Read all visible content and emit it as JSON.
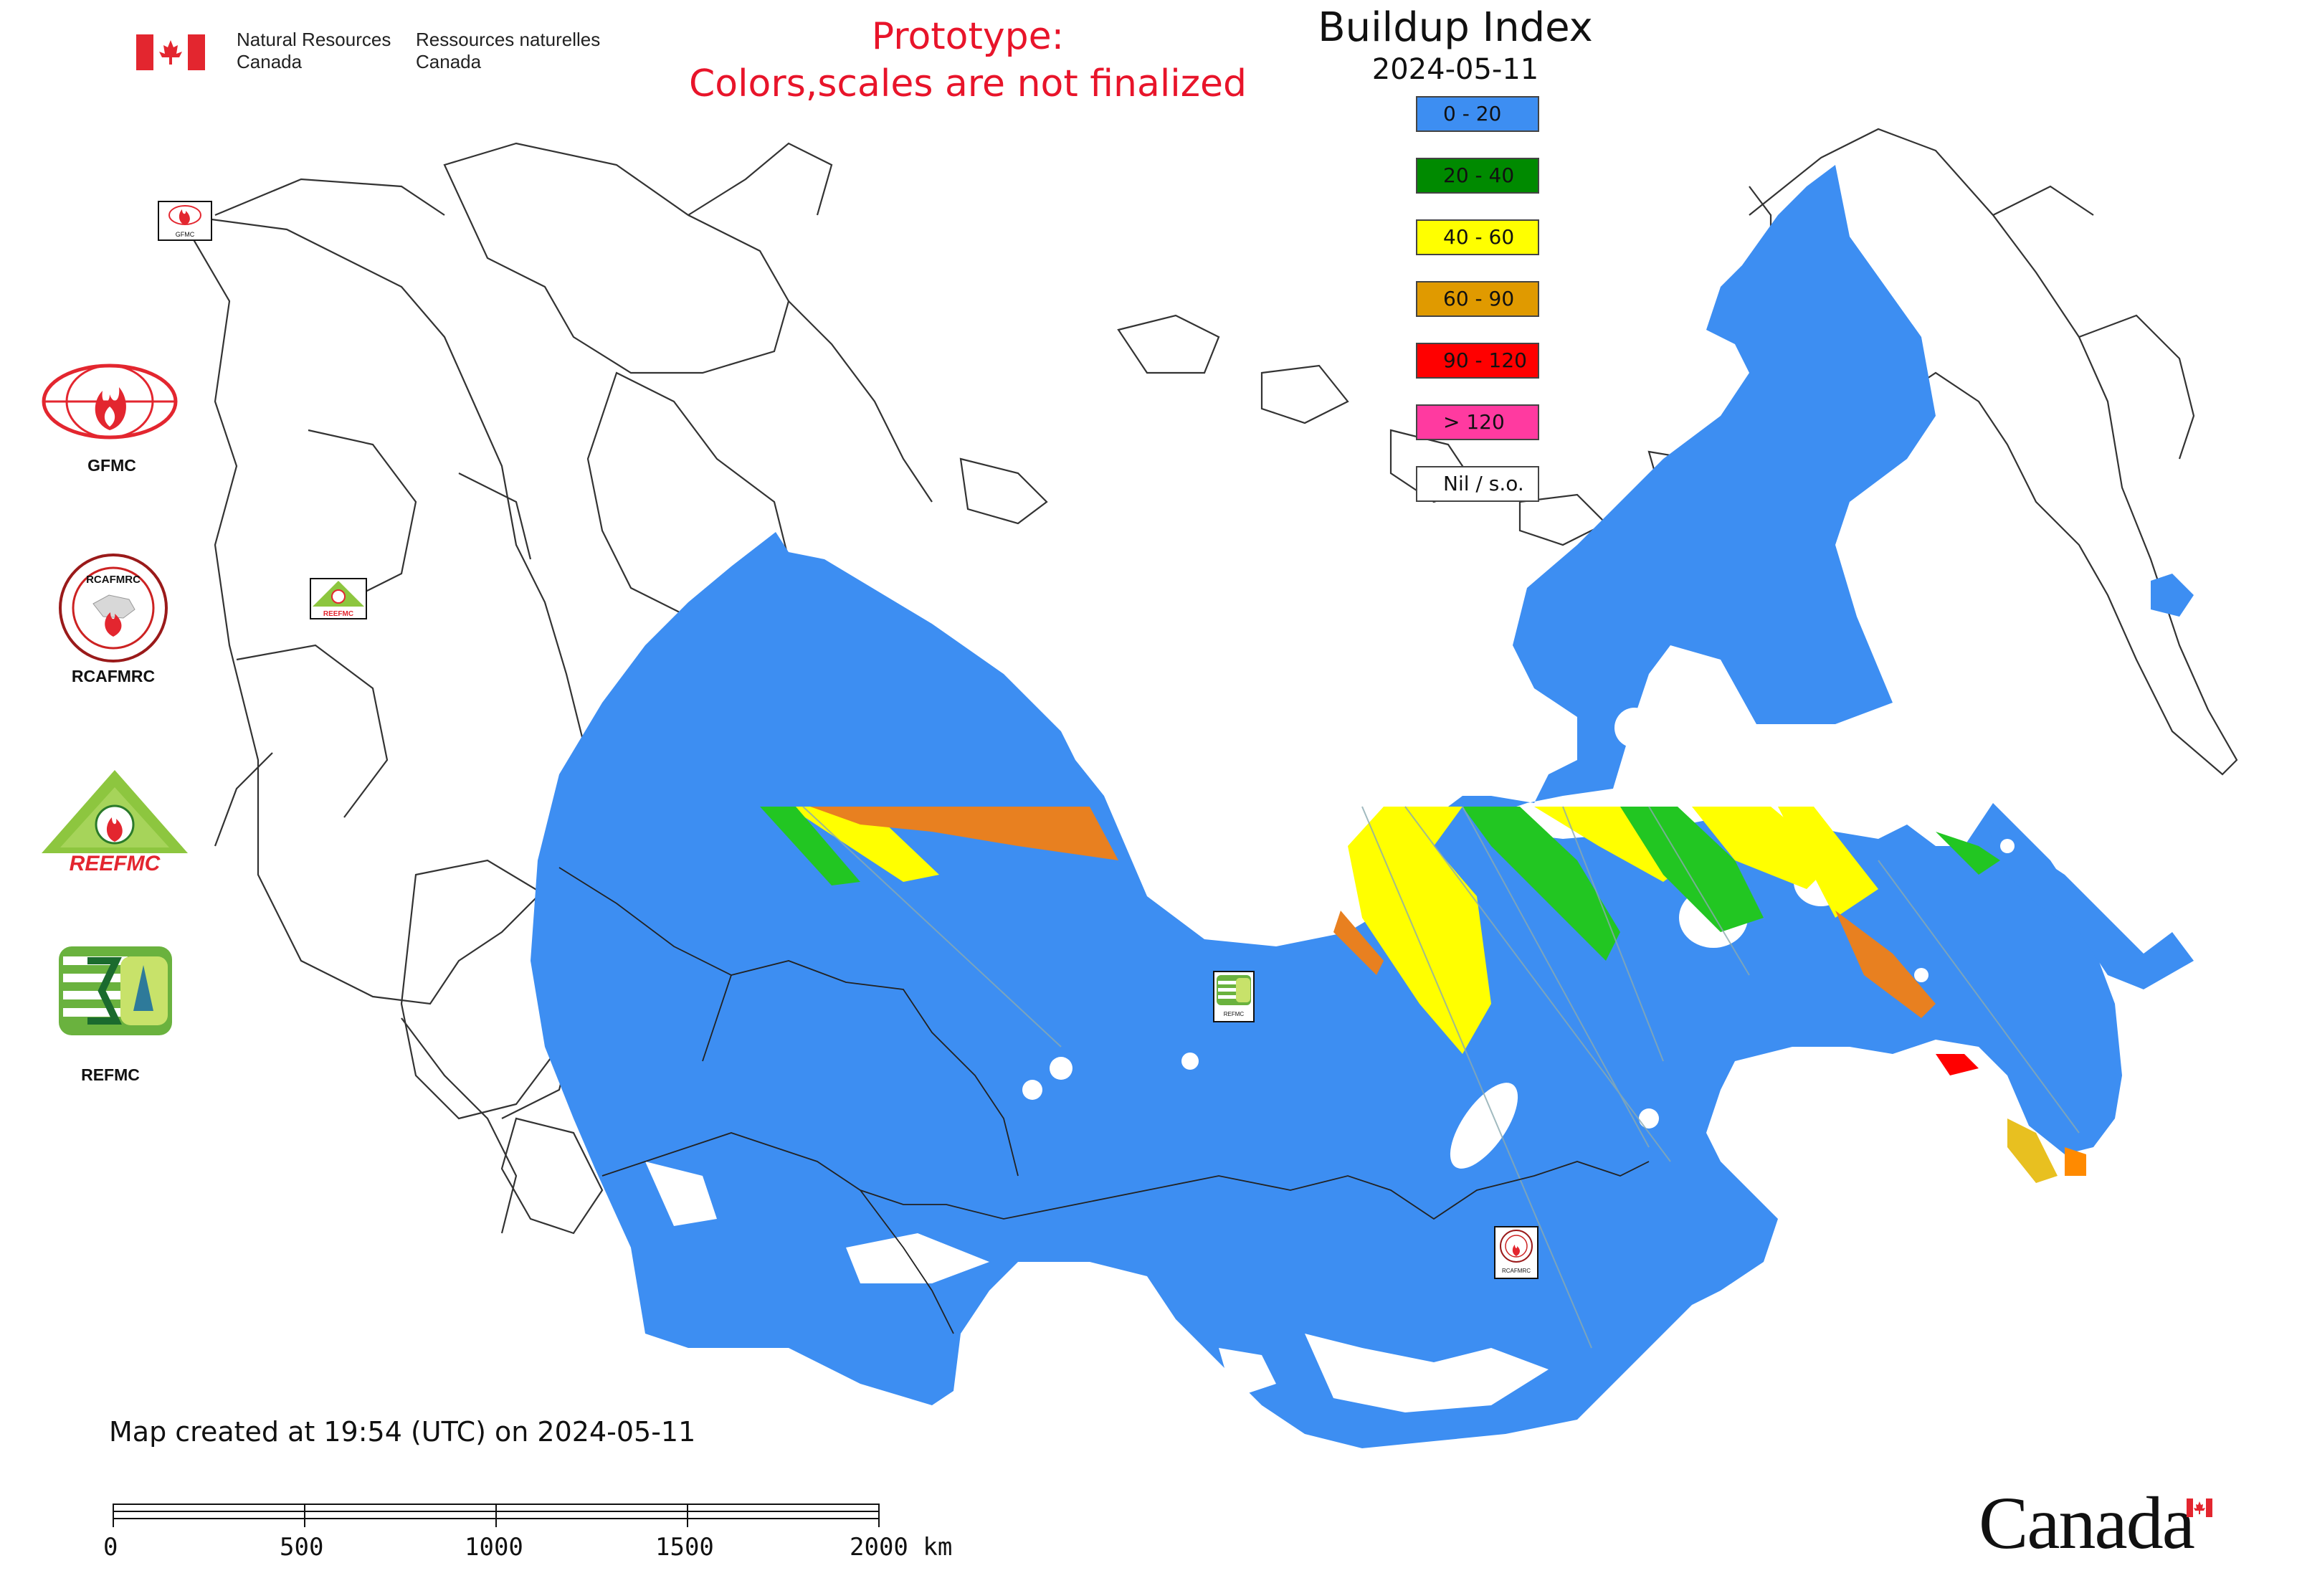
{
  "header": {
    "department_en": "Natural Resources\nCanada",
    "department_fr": "Ressources naturelles\nCanada",
    "prototype_notice_line1": "Prototype:",
    "prototype_notice_line2": "Colors,scales are not finalized"
  },
  "legend": {
    "title": "Buildup Index",
    "date": "2024-05-11",
    "classes": [
      {
        "label": "0 - 20",
        "color": "#3d8ef2"
      },
      {
        "label": "20 - 40",
        "color": "#008a00"
      },
      {
        "label": "40 - 60",
        "color": "#ffff00"
      },
      {
        "label": "60 - 90",
        "color": "#e09a00"
      },
      {
        "label": "90 - 120",
        "color": "#ff0000"
      },
      {
        "label": "> 120",
        "color": "#ff3aa0"
      },
      {
        "label": "Nil / s.o.",
        "color": "#ffffff"
      }
    ]
  },
  "logos": {
    "gfmc": "GFMC",
    "rcafmrc": "RCAFMRC",
    "reefmc": "REEFMC",
    "refmc": "REFMC",
    "reefmc_wordmark": "REEFMC",
    "rcafmrc_ring": "RCAFMRC"
  },
  "map_markers": {
    "gfmc_small": "GFMC",
    "reefmc_small": "REEFMC",
    "refmc_small": "REFMC",
    "rcafmrc_small": "RCAFMRC"
  },
  "footer": {
    "created": "Map created at 19:54 (UTC) on 2024-05-11",
    "scale_labels": [
      "0",
      "500",
      "1000",
      "1500",
      "2000 km"
    ],
    "wordmark": "Canada"
  },
  "colors": {
    "fill_low": "#3d8ef2",
    "fill_mid": "#ffff00",
    "fill_high": "#e88020",
    "fill_green": "#22c622",
    "outline": "#222222",
    "notice_red": "#e8142a"
  }
}
